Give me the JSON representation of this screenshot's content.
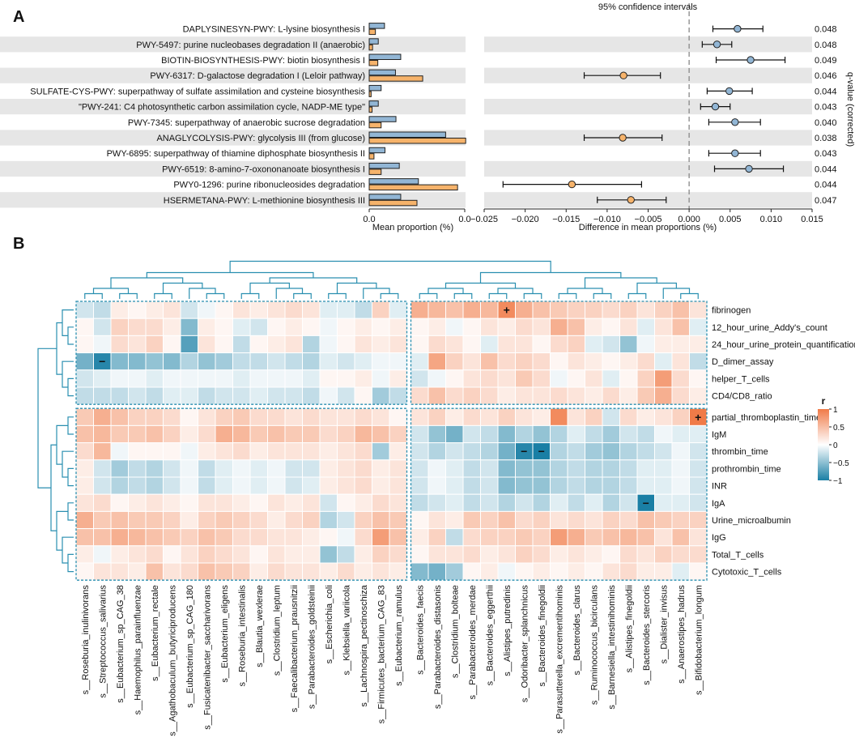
{
  "chart_data": [
    {
      "type": "bar",
      "panel": "A",
      "subtype": "extended error bar plot",
      "categories": [
        "DAPLYSINESYN-PWY: L-lysine biosynthesis I",
        "PWY-5497: purine nucleobases degradation II (anaerobic)",
        "BIOTIN-BIOSYNTHESIS-PWY: biotin biosynthesis I",
        "PWY-6317: D-galactose degradation I (Leloir pathway)",
        "SULFATE-CYS-PWY: superpathway of sulfate assimilation and cysteine biosynthesis",
        "\"PWY-241: C4 photosynthetic carbon assimilation cycle, NADP-ME type\"",
        "PWY-7345: superpathway of anaerobic sucrose degradation",
        "ANAGLYCOLYSIS-PWY: glycolysis III (from glucose)",
        "PWY-6895: superpathway of thiamine diphosphate biosynthesis II",
        "PWY-6519: 8-amino-7-oxononanoate biosynthesis I",
        "PWY0-1296: purine ribonucleosides degradation",
        "HSERMETANA-PWY: L-methionine biosynthesis III"
      ],
      "series": [
        {
          "name": "group1",
          "color": "#92b6d5",
          "values": [
            0.0032,
            0.0019,
            0.0066,
            0.0055,
            0.0025,
            0.0019,
            0.0056,
            0.016,
            0.0033,
            0.0063,
            0.0103,
            0.0066
          ]
        },
        {
          "name": "group2",
          "color": "#f6b36b",
          "values": [
            0.0013,
            0.0007,
            0.0018,
            0.0112,
            0.0004,
            0.0006,
            0.0025,
            0.0202,
            0.001,
            0.0025,
            0.0185,
            0.01
          ]
        }
      ],
      "difference": [
        0.0059,
        0.0034,
        0.0075,
        -0.008,
        0.0049,
        0.0032,
        0.0056,
        -0.0081,
        0.0056,
        0.0073,
        -0.0143,
        -0.0071
      ],
      "ci_low": [
        0.0029,
        0.0016,
        0.0033,
        -0.0128,
        0.0022,
        0.0014,
        0.0024,
        -0.0128,
        0.0024,
        0.0031,
        -0.0227,
        -0.0112
      ],
      "ci_high": [
        0.009,
        0.0052,
        0.0117,
        -0.0035,
        0.0077,
        0.005,
        0.0087,
        -0.0033,
        0.0087,
        0.0115,
        -0.0058,
        -0.0028
      ],
      "qvalues": [
        "0.048",
        "0.048",
        "0.049",
        "0.046",
        "0.044",
        "0.043",
        "0.040",
        "0.038",
        "0.043",
        "0.044",
        "0.044",
        "0.047"
      ],
      "xlabel_left": "Mean proportion (%)",
      "xlabel_right": "Difference in mean proportions (%)",
      "ylabel_right": "q-value (corrected)",
      "title": "95% confidence intervals",
      "xlim_left": [
        0,
        0.02
      ],
      "xlim_right": [
        -0.025,
        0.015
      ],
      "xticks_left": [
        "0.0",
        "0.0"
      ],
      "xticks_right": [
        "−0.025",
        "−0.020",
        "−0.015",
        "−0.010",
        "−0.005",
        "0.000",
        "0.005",
        "0.010",
        "0.015"
      ],
      "zero_line": "0.000"
    },
    {
      "type": "heatmap",
      "panel": "B",
      "rows": [
        "fibrinogen",
        "12_hour_urine_Addy's_count",
        "24_hour_urine_protein_quantification",
        "D_dimer_assay",
        "helper_T_cells",
        "CD4/CD8_ratio",
        "partial_thromboplastin_time",
        "IgM",
        "thrombin_time",
        "prothrombin_time",
        "INR",
        "IgA",
        "Urine_microalbumin",
        "IgG",
        "Total_T_cells",
        "Cytotoxic_T_cells"
      ],
      "columns": [
        "s__Roseburia_inulinivorans",
        "s__Streptococcus_salivarius",
        "s__Eubacterium_sp_CAG_38",
        "s__Haemophilus_parainfluenzae",
        "s__Eubacterium_rectale",
        "s__Agathobaculum_butyriciproducens",
        "s__Eubacterium_sp_CAG_180",
        "s__Fusicatenibacter_saccharivorans",
        "s__Eubacterium_eligens",
        "s__Roseburia_intestinalis",
        "s__Blautia_wexlerae",
        "s__Clostridium_leptum",
        "s__Faecalibacterium_prausnitzii",
        "s__Parabacteroides_goldsteinii",
        "s__Escherichia_coli",
        "s__Klebsiella_variicola",
        "s__Lachnospira_pectinoschiza",
        "s__Firmicutes_bacterium_CAG_83",
        "s__Eubacterium_ramulus",
        "s__Bacteroides_faecis",
        "s__Parabacteroides_distasonis",
        "s__Clostridium_bolteae",
        "s__Parabacteroides_merdae",
        "s__Bacteroides_eggerthii",
        "s__Alistipes_putredinis",
        "s__Odoribacter_splanchnicus",
        "s__Bacteroides_finegoldii",
        "s__Parasutterella_excrementihominis",
        "s__Bacteroides_clarus",
        "s__Ruminococcus_bicirculans",
        "s__Barnesiella_intestinihominis",
        "s__Alistipes_finegoldii",
        "s__Bacteroides_stercoris",
        "s__Dialister_invisus",
        "s__Anaerostipes_hadrus",
        "s__Bifidobacterium_longum"
      ],
      "values": [
        [
          -0.15,
          -0.2,
          0.1,
          0.05,
          0.1,
          0.15,
          -0.15,
          -0.05,
          0.05,
          0.15,
          0.1,
          0.15,
          0.2,
          0.15,
          -0.1,
          -0.1,
          -0.2,
          0.25,
          -0.1,
          0.45,
          0.4,
          0.35,
          0.45,
          0.4,
          0.65,
          0.45,
          0.35,
          0.3,
          0.25,
          0.25,
          0.2,
          0.25,
          0.15,
          0.25,
          0.35,
          0.15
        ],
        [
          0.05,
          -0.15,
          0.25,
          0.2,
          0.2,
          0.1,
          -0.4,
          0.1,
          0.05,
          -0.1,
          -0.15,
          0.05,
          0.1,
          0.05,
          -0.05,
          0.05,
          0.1,
          0.05,
          0.1,
          0.05,
          0.1,
          -0.05,
          0.05,
          0.15,
          0.1,
          0.2,
          0.15,
          0.45,
          0.35,
          0.1,
          0.05,
          0.15,
          -0.1,
          0.15,
          0.35,
          -0.1
        ],
        [
          0.05,
          -0.05,
          0.2,
          0.15,
          0.25,
          0.05,
          -0.55,
          0.15,
          0.05,
          -0.2,
          0.05,
          0.1,
          0.15,
          -0.25,
          -0.05,
          0.05,
          0.15,
          0.1,
          0.15,
          0.05,
          0.2,
          0.15,
          0.05,
          -0.1,
          0.15,
          0.15,
          0.05,
          0.2,
          0.25,
          -0.1,
          -0.15,
          -0.35,
          -0.05,
          0.1,
          0.1,
          0.1
        ],
        [
          -0.45,
          -0.7,
          -0.4,
          -0.4,
          -0.35,
          -0.4,
          -0.25,
          -0.35,
          -0.3,
          -0.2,
          -0.2,
          -0.15,
          -0.2,
          -0.25,
          -0.1,
          -0.15,
          -0.1,
          -0.05,
          -0.05,
          -0.1,
          0.5,
          0.25,
          0.15,
          0.35,
          0.2,
          0.25,
          0.2,
          0.05,
          0.15,
          0.1,
          0.05,
          0.1,
          0.2,
          -0.1,
          0.15,
          -0.2
        ],
        [
          -0.15,
          -0.1,
          -0.05,
          -0.05,
          -0.1,
          -0.05,
          -0.05,
          -0.05,
          -0.05,
          -0.1,
          -0.05,
          -0.05,
          -0.05,
          -0.1,
          0.05,
          0.05,
          0.1,
          -0.05,
          0.1,
          -0.15,
          -0.05,
          0.05,
          0.15,
          0.2,
          0.15,
          0.3,
          0.2,
          -0.05,
          0.05,
          0.15,
          -0.1,
          0.05,
          0.25,
          0.55,
          0.2,
          0.05
        ],
        [
          -0.2,
          -0.2,
          -0.2,
          -0.15,
          -0.2,
          -0.1,
          -0.1,
          -0.2,
          -0.15,
          -0.15,
          -0.1,
          -0.15,
          -0.15,
          -0.2,
          -0.05,
          -0.15,
          0.05,
          -0.3,
          -0.2,
          0.2,
          0.35,
          0.2,
          0.25,
          0.2,
          0.1,
          0.15,
          0.15,
          0.2,
          0.15,
          0.1,
          0.2,
          0.1,
          0.3,
          0.45,
          0.2,
          0.1
        ],
        [
          0.3,
          0.45,
          0.35,
          0.25,
          0.25,
          0.2,
          0.05,
          0.15,
          0.25,
          0.3,
          0.2,
          0.2,
          0.15,
          0.2,
          0.15,
          0.15,
          0.2,
          0.15,
          0.05,
          0.15,
          0.25,
          0.1,
          0.2,
          0.15,
          0.25,
          0.15,
          0.1,
          0.65,
          0.15,
          0.25,
          -0.15,
          0.2,
          0.1,
          0.15,
          0.25,
          0.75
        ],
        [
          0.35,
          0.4,
          0.3,
          0.3,
          0.35,
          0.25,
          0.1,
          0.2,
          0.45,
          0.4,
          0.3,
          0.35,
          0.3,
          0.3,
          0.2,
          0.25,
          0.4,
          0.35,
          0.25,
          -0.15,
          -0.35,
          -0.45,
          -0.15,
          -0.2,
          -0.4,
          -0.25,
          -0.35,
          -0.25,
          -0.1,
          -0.2,
          -0.3,
          -0.15,
          -0.2,
          -0.05,
          -0.1,
          -0.1
        ],
        [
          0.2,
          0.4,
          -0.05,
          0.05,
          0.05,
          0.05,
          -0.05,
          0.1,
          0.15,
          0.2,
          0.1,
          0.15,
          0.15,
          0.15,
          0.1,
          0.15,
          0.2,
          -0.3,
          0.1,
          -0.15,
          -0.25,
          -0.15,
          -0.2,
          -0.25,
          -0.45,
          -0.7,
          -0.8,
          -0.25,
          -0.2,
          -0.3,
          -0.35,
          -0.25,
          -0.2,
          -0.15,
          -0.05,
          -0.15
        ],
        [
          0.1,
          -0.15,
          -0.3,
          -0.2,
          -0.25,
          -0.15,
          -0.05,
          -0.2,
          -0.1,
          -0.05,
          -0.1,
          -0.05,
          -0.15,
          -0.15,
          0.1,
          0.15,
          0.2,
          0.1,
          0.15,
          -0.15,
          -0.05,
          -0.1,
          -0.2,
          -0.15,
          -0.4,
          -0.35,
          -0.35,
          -0.25,
          -0.2,
          -0.25,
          -0.25,
          -0.2,
          -0.1,
          -0.1,
          -0.05,
          -0.15
        ],
        [
          0.1,
          -0.15,
          -0.25,
          -0.2,
          -0.25,
          -0.15,
          -0.05,
          -0.2,
          -0.1,
          -0.05,
          -0.1,
          -0.05,
          -0.15,
          -0.1,
          0.1,
          0.15,
          0.2,
          0.1,
          0.15,
          -0.15,
          -0.05,
          -0.1,
          -0.2,
          -0.15,
          -0.4,
          -0.35,
          -0.35,
          -0.25,
          -0.2,
          -0.25,
          -0.25,
          -0.2,
          -0.1,
          -0.1,
          -0.05,
          -0.15
        ],
        [
          0.15,
          0.2,
          0.05,
          0.1,
          0.15,
          0.1,
          0.05,
          0.15,
          0.15,
          0.1,
          0.05,
          0.15,
          0.1,
          0.15,
          -0.15,
          0.05,
          0.1,
          0.2,
          0.15,
          -0.2,
          -0.15,
          -0.1,
          -0.2,
          -0.15,
          -0.25,
          -0.15,
          -0.25,
          -0.1,
          -0.2,
          -0.1,
          -0.25,
          -0.15,
          -0.8,
          -0.1,
          -0.1,
          -0.15
        ],
        [
          0.45,
          0.3,
          0.35,
          0.3,
          0.3,
          0.25,
          0.1,
          0.25,
          0.3,
          0.25,
          0.2,
          0.1,
          0.2,
          0.25,
          -0.25,
          -0.15,
          0.25,
          0.35,
          0.3,
          0.05,
          0.15,
          0.1,
          0.3,
          0.25,
          0.35,
          0.2,
          0.25,
          0.15,
          0.2,
          0.15,
          0.25,
          0.2,
          0.35,
          0.3,
          0.25,
          0.25
        ],
        [
          0.35,
          0.35,
          0.45,
          0.4,
          0.35,
          0.3,
          0.25,
          0.35,
          0.3,
          0.2,
          0.2,
          0.15,
          0.15,
          0.1,
          0.05,
          -0.05,
          0.2,
          0.55,
          0.35,
          0.1,
          0.25,
          -0.2,
          0.2,
          0.25,
          0.25,
          0.3,
          0.25,
          0.55,
          0.45,
          0.3,
          0.35,
          0.4,
          0.35,
          0.15,
          0.35,
          0.15
        ],
        [
          0.1,
          -0.05,
          0.1,
          0.15,
          0.2,
          0.05,
          0.15,
          0.25,
          0.2,
          0.15,
          0.05,
          0.15,
          0.1,
          0.1,
          -0.35,
          -0.2,
          0.1,
          0.25,
          0.2,
          0.05,
          0.15,
          0.15,
          0.2,
          0.1,
          0.15,
          0.25,
          0.2,
          0.1,
          0.15,
          0.1,
          0.05,
          0.2,
          0.15,
          0.25,
          0.2,
          0.2
        ],
        [
          0.05,
          0.15,
          0.15,
          0.1,
          0.35,
          0.15,
          0.2,
          0.35,
          0.3,
          0.25,
          0.1,
          0.2,
          0.15,
          0.15,
          0.1,
          0.2,
          0.1,
          0.15,
          0.1,
          -0.4,
          -0.45,
          -0.3,
          0.05,
          0.1,
          -0.05,
          0.05,
          0.1,
          0.05,
          0.1,
          0.05,
          0.15,
          0.2,
          0.1,
          0.1,
          -0.1,
          0.05
        ]
      ],
      "marks": [
        {
          "row": "fibrinogen",
          "column": "s__Alistipes_putredinis",
          "symbol": "+"
        },
        {
          "row": "D_dimer_assay",
          "column": "s__Streptococcus_salivarius",
          "symbol": "−"
        },
        {
          "row": "partial_thromboplastin_time",
          "column": "s__Bifidobacterium_longum",
          "symbol": "+"
        },
        {
          "row": "thrombin_time",
          "column": "s__Odoribacter_splanchnicus",
          "symbol": "−"
        },
        {
          "row": "thrombin_time",
          "column": "s__Bacteroides_finegoldii",
          "symbol": "−"
        },
        {
          "row": "IgA",
          "column": "s__Bacteroides_stercoris",
          "symbol": "−"
        }
      ],
      "row_blocks": [
        6,
        10
      ],
      "column_blocks": [
        19,
        17
      ],
      "legend": {
        "title": "r",
        "ticks": [
          "1",
          "0.5",
          "0",
          "−0.5",
          "−1"
        ],
        "low_color": "#1a7fa5",
        "mid_color": "#ffffff",
        "high_color": "#f07b48"
      },
      "cluster_color": "#2a8fb0"
    }
  ],
  "panel_labels": {
    "a": "A",
    "b": "B"
  }
}
